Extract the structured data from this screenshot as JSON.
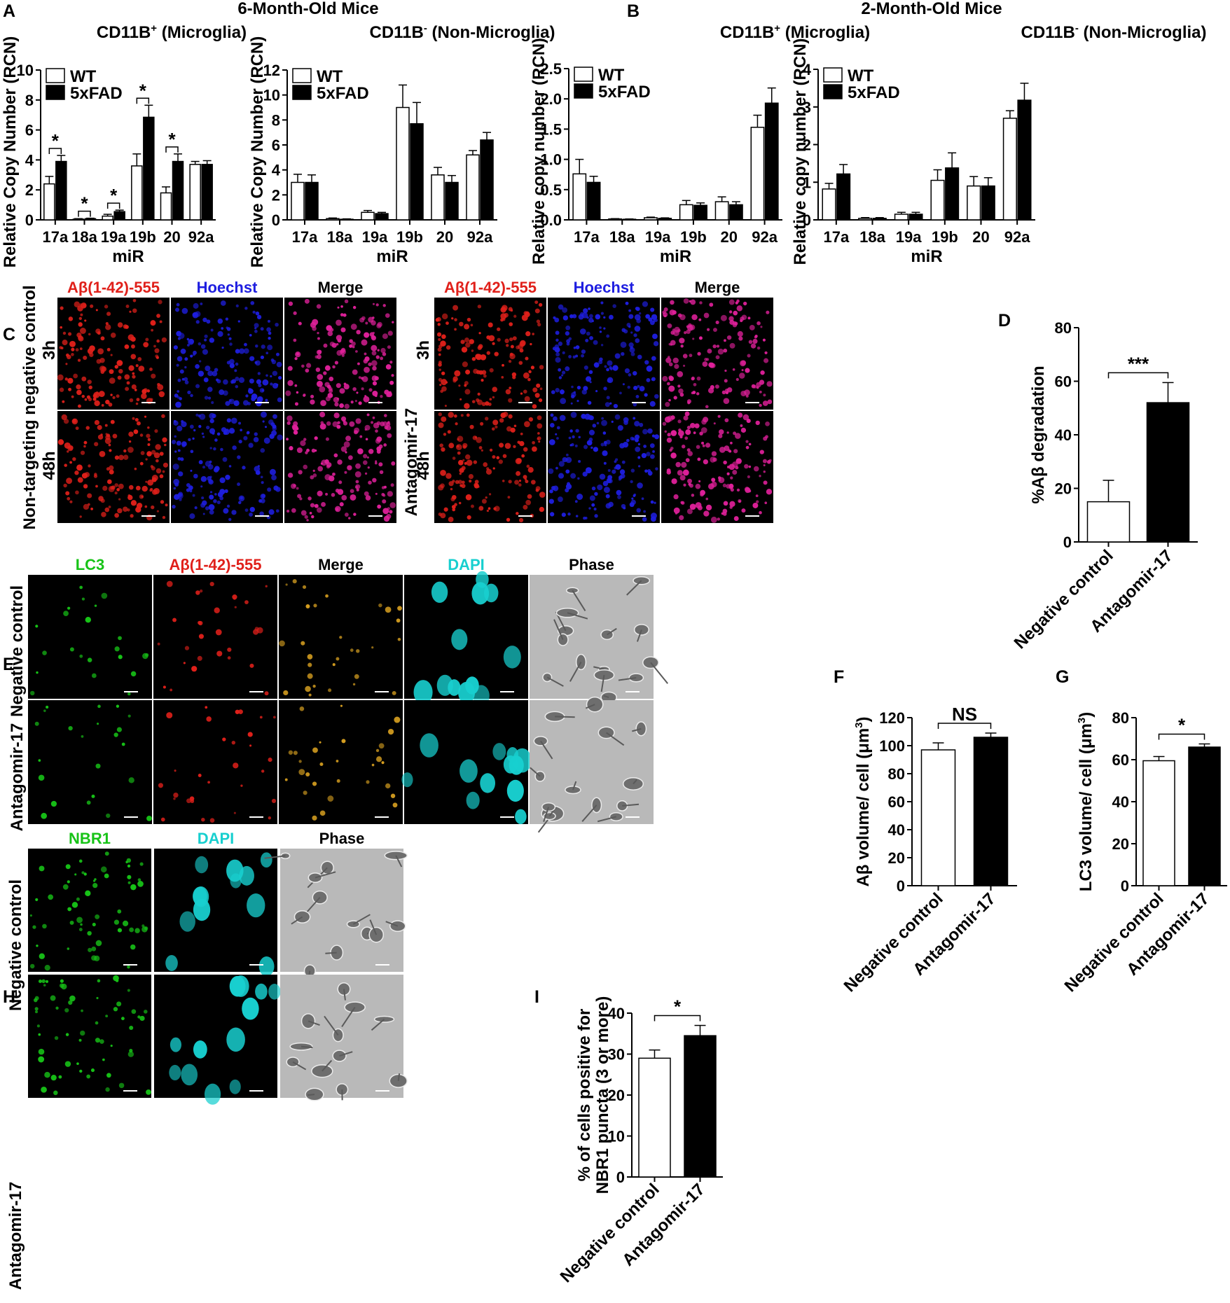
{
  "panel_letters": {
    "A": "A",
    "B": "B",
    "C": "C",
    "D": "D",
    "E": "E",
    "F": "F",
    "G": "G",
    "H": "H",
    "I": "I"
  },
  "headers": {
    "A": "6-Month-Old Mice",
    "B": "2-Month-Old Mice",
    "microglia": "CD11B",
    "microglia_sup": "+",
    "microglia_rest": " (Microglia)",
    "nonmicroglia": "CD11B",
    "nonmicroglia_sup": "-",
    "nonmicroglia_rest": " (Non-Microglia)"
  },
  "legend": {
    "wt": "WT",
    "fad": "5xFAD"
  },
  "colors": {
    "open_bar": "#ffffff",
    "filled_bar": "#000000",
    "red": "#e0201a",
    "blue": "#1e1ee0",
    "green": "#17c317",
    "cyan": "#18cfcf"
  },
  "microscopy": {
    "C": {
      "channels": [
        "Aβ(1-42)-555",
        "Hoechst",
        "Merge"
      ],
      "channel_colors": [
        "#e0201a",
        "#1e1ee0",
        "#000000"
      ],
      "row_labels_left": {
        "group": "Non-targeting  negative control",
        "t1": "3h",
        "t2": "48h"
      },
      "row_labels_right": {
        "group": "Antagomir-17",
        "t1": "3h",
        "t2": "48h"
      }
    },
    "E": {
      "channels": [
        "LC3",
        "Aβ(1-42)-555",
        "Merge",
        "DAPI",
        "Phase"
      ],
      "channel_colors": [
        "#17c317",
        "#e0201a",
        "#000000",
        "#18cfcf",
        "#000000"
      ],
      "rows": [
        "Negative control",
        "Antagomir-17"
      ]
    },
    "H": {
      "channels": [
        "NBR1",
        "DAPI",
        "Phase"
      ],
      "channel_colors": [
        "#17c317",
        "#18cfcf",
        "#000000"
      ],
      "rows": [
        "Negative control",
        "Antagomir-17"
      ]
    }
  },
  "chart_data": [
    {
      "id": "A-left",
      "type": "bar",
      "title": "CD11B+ (Microglia)",
      "xlabel": "miR",
      "ylabel": "Relative Copy Number (RCN)",
      "categories": [
        "17a",
        "18a",
        "19a",
        "19b",
        "20",
        "92a"
      ],
      "ylim": [
        0,
        10
      ],
      "yticks": [
        0,
        2,
        4,
        6,
        8,
        10
      ],
      "series": [
        {
          "name": "WT",
          "values": [
            2.4,
            0.05,
            0.25,
            3.6,
            1.8,
            3.7
          ],
          "errors": [
            0.5,
            0.03,
            0.12,
            0.8,
            0.4,
            0.2
          ]
        },
        {
          "name": "5xFAD",
          "values": [
            3.9,
            0.08,
            0.55,
            6.85,
            3.9,
            3.7
          ],
          "errors": [
            0.4,
            0.03,
            0.1,
            0.8,
            0.5,
            0.25
          ]
        }
      ],
      "annotations": [
        "*",
        "*",
        "*",
        "*",
        "*"
      ],
      "legend": "top-left"
    },
    {
      "id": "A-right",
      "type": "bar",
      "title": "CD11B- (Non-Microglia)",
      "xlabel": "miR",
      "ylabel": "Relative Copy Number (RCN)",
      "categories": [
        "17a",
        "18a",
        "19a",
        "19b",
        "20",
        "92a"
      ],
      "ylim": [
        0,
        12
      ],
      "yticks": [
        0,
        2,
        4,
        6,
        8,
        10,
        12
      ],
      "series": [
        {
          "name": "WT",
          "values": [
            3.0,
            0.1,
            0.6,
            9.0,
            3.6,
            5.2
          ],
          "errors": [
            0.65,
            0.05,
            0.15,
            1.8,
            0.6,
            0.35
          ]
        },
        {
          "name": "5xFAD",
          "values": [
            3.0,
            0.05,
            0.5,
            7.7,
            3.0,
            6.4
          ],
          "errors": [
            0.6,
            0.03,
            0.1,
            1.7,
            0.55,
            0.6
          ]
        }
      ],
      "legend": "top-left"
    },
    {
      "id": "B-left",
      "type": "bar",
      "title": "CD11B+ (Microglia)",
      "xlabel": "miR",
      "ylabel": "Relative copy number (RCN)",
      "categories": [
        "17a",
        "18a",
        "19a",
        "19b",
        "20",
        "92a"
      ],
      "ylim": [
        0,
        2.5
      ],
      "yticks": [
        0.0,
        0.5,
        1.0,
        1.5,
        2.0,
        2.5
      ],
      "series": [
        {
          "name": "WT",
          "values": [
            0.76,
            0.015,
            0.035,
            0.25,
            0.3,
            1.53
          ],
          "errors": [
            0.24,
            0.005,
            0.01,
            0.07,
            0.08,
            0.2
          ]
        },
        {
          "name": "5xFAD",
          "values": [
            0.62,
            0.01,
            0.025,
            0.24,
            0.25,
            1.93
          ],
          "errors": [
            0.1,
            0.005,
            0.008,
            0.04,
            0.05,
            0.25
          ]
        }
      ],
      "legend": "top-left"
    },
    {
      "id": "B-right",
      "type": "bar",
      "title": "CD11B- (Non-Microglia)",
      "xlabel": "miR",
      "ylabel": "Relative copy number (RCN)",
      "categories": [
        "17a",
        "18a",
        "19a",
        "19b",
        "20",
        "92a"
      ],
      "ylim": [
        0,
        4
      ],
      "yticks": [
        0,
        1,
        2,
        3,
        4
      ],
      "series": [
        {
          "name": "WT",
          "values": [
            0.82,
            0.04,
            0.15,
            1.05,
            0.9,
            2.7
          ],
          "errors": [
            0.15,
            0.02,
            0.05,
            0.28,
            0.25,
            0.2
          ]
        },
        {
          "name": "5xFAD",
          "values": [
            1.22,
            0.04,
            0.15,
            1.38,
            0.9,
            3.18
          ],
          "errors": [
            0.25,
            0.02,
            0.05,
            0.4,
            0.22,
            0.45
          ]
        }
      ],
      "legend": "top-left"
    },
    {
      "id": "D",
      "type": "bar",
      "ylabel": "%Aβ degradation",
      "categories": [
        "Negative control",
        "Antagomir-17"
      ],
      "values": [
        15,
        52
      ],
      "errors": [
        8,
        7.5
      ],
      "ylim": [
        0,
        80
      ],
      "yticks": [
        0,
        20,
        40,
        60,
        80
      ],
      "annotation": "***"
    },
    {
      "id": "F",
      "type": "bar",
      "ylabel": "Aβ volume/ cell (μm3)",
      "categories": [
        "Negative control",
        "Antagomir-17"
      ],
      "values": [
        97,
        106
      ],
      "errors": [
        5,
        3
      ],
      "ylim": [
        0,
        120
      ],
      "yticks": [
        0,
        20,
        40,
        60,
        80,
        100,
        120
      ],
      "annotation": "NS"
    },
    {
      "id": "G",
      "type": "bar",
      "ylabel": "LC3 volume/ cell (μm3)",
      "categories": [
        "Negative control",
        "Antagomir-17"
      ],
      "values": [
        59.5,
        66
      ],
      "errors": [
        2,
        1.5
      ],
      "ylim": [
        0,
        80
      ],
      "yticks": [
        0,
        20,
        40,
        60,
        80
      ],
      "annotation": "*"
    },
    {
      "id": "I",
      "type": "bar",
      "ylabel": "% of cells positive for NBR1 puncta (3 or more)",
      "categories": [
        "Negative control",
        "Antagomir-17"
      ],
      "values": [
        29,
        34.5
      ],
      "errors": [
        2,
        2.5
      ],
      "ylim": [
        0,
        40
      ],
      "yticks": [
        0,
        10,
        20,
        30,
        40
      ],
      "annotation": "*"
    }
  ]
}
